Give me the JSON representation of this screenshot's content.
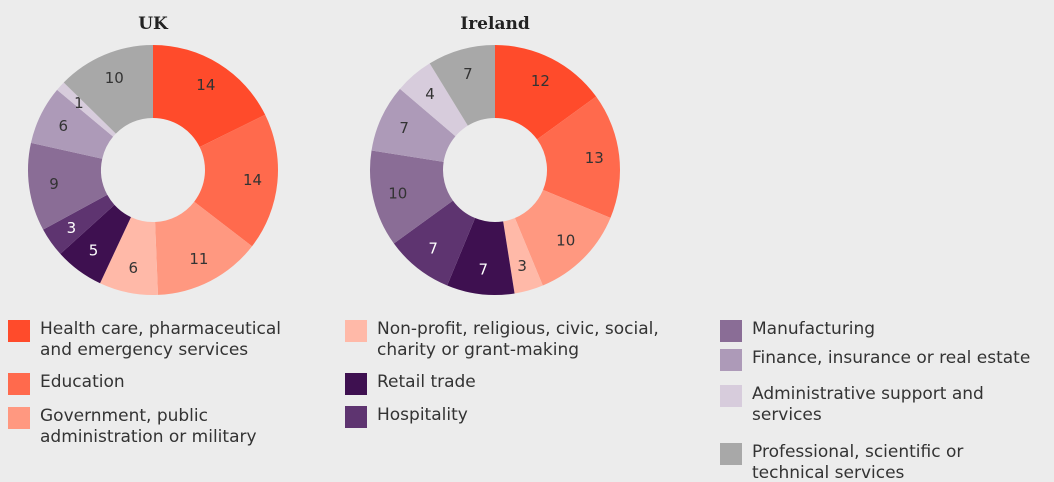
{
  "chart_data": [
    {
      "type": "pie",
      "title": "UK",
      "categories": [
        "Health care, pharmaceutical and emergency services",
        "Education",
        "Government, public administration or military",
        "Non-profit, religious, civic, social, charity or grant-making",
        "Retail trade",
        "Hospitality",
        "Manufacturing",
        "Finance, insurance or real estate",
        "Administrative support and services",
        "Professional, scientific or technical services"
      ],
      "values": [
        14,
        14,
        11,
        6,
        5,
        3,
        9,
        6,
        1,
        10
      ],
      "colors": [
        "#ff4b2b",
        "#ff6a4d",
        "#ff9880",
        "#ffb9a8",
        "#3e1050",
        "#5e3470",
        "#8a6d96",
        "#ad9ab8",
        "#d7ccdc",
        "#a8a8a8"
      ]
    },
    {
      "type": "pie",
      "title": "Ireland",
      "categories": [
        "Health care, pharmaceutical and emergency services",
        "Education",
        "Government, public administration or military",
        "Non-profit, religious, civic, social, charity or grant-making",
        "Retail trade",
        "Hospitality",
        "Manufacturing",
        "Finance, insurance or real estate",
        "Administrative support and services",
        "Professional, scientific or technical services"
      ],
      "values": [
        12,
        13,
        10,
        3,
        7,
        7,
        10,
        7,
        4,
        7
      ],
      "colors": [
        "#ff4b2b",
        "#ff6a4d",
        "#ff9880",
        "#ffb9a8",
        "#3e1050",
        "#5e3470",
        "#8a6d96",
        "#ad9ab8",
        "#d7ccdc",
        "#a8a8a8"
      ]
    }
  ]
}
